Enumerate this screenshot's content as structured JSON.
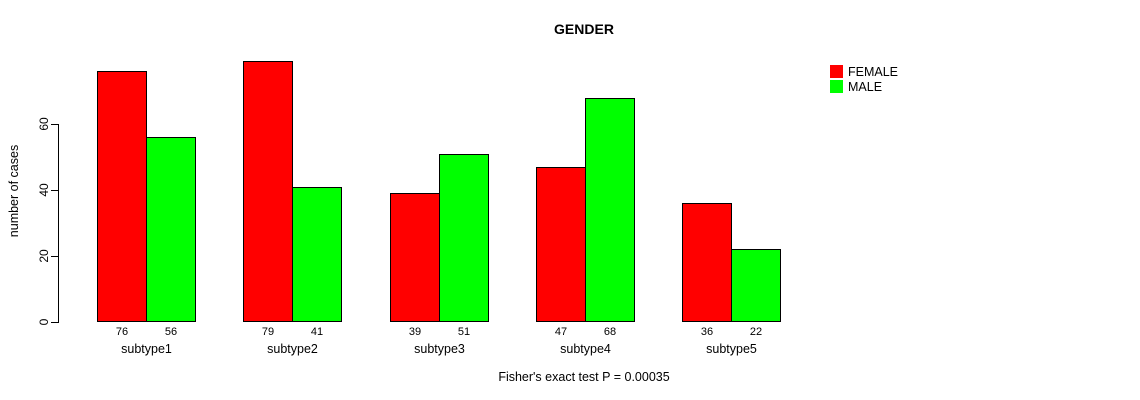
{
  "title": "GENDER",
  "ylabel": "number of cases",
  "caption": "Fisher's exact test P = 0.00035",
  "legend": {
    "items": [
      {
        "label": "FEMALE",
        "color": "#ff0000"
      },
      {
        "label": "MALE",
        "color": "#00ff00"
      }
    ]
  },
  "chart_data": {
    "type": "bar",
    "categories": [
      "subtype1",
      "subtype2",
      "subtype3",
      "subtype4",
      "subtype5"
    ],
    "series": [
      {
        "name": "FEMALE",
        "color": "#ff0000",
        "values": [
          76,
          79,
          39,
          47,
          36
        ]
      },
      {
        "name": "MALE",
        "color": "#00ff00",
        "values": [
          56,
          41,
          51,
          68,
          22
        ]
      }
    ],
    "title": "GENDER",
    "xlabel": "",
    "ylabel": "number of cases",
    "yticks": [
      0,
      20,
      40,
      60
    ],
    "ylim": [
      0,
      80
    ],
    "grid": false,
    "legend_position": "top-right",
    "bar_value_labels": true,
    "annotation": "Fisher's exact test P = 0.00035"
  }
}
